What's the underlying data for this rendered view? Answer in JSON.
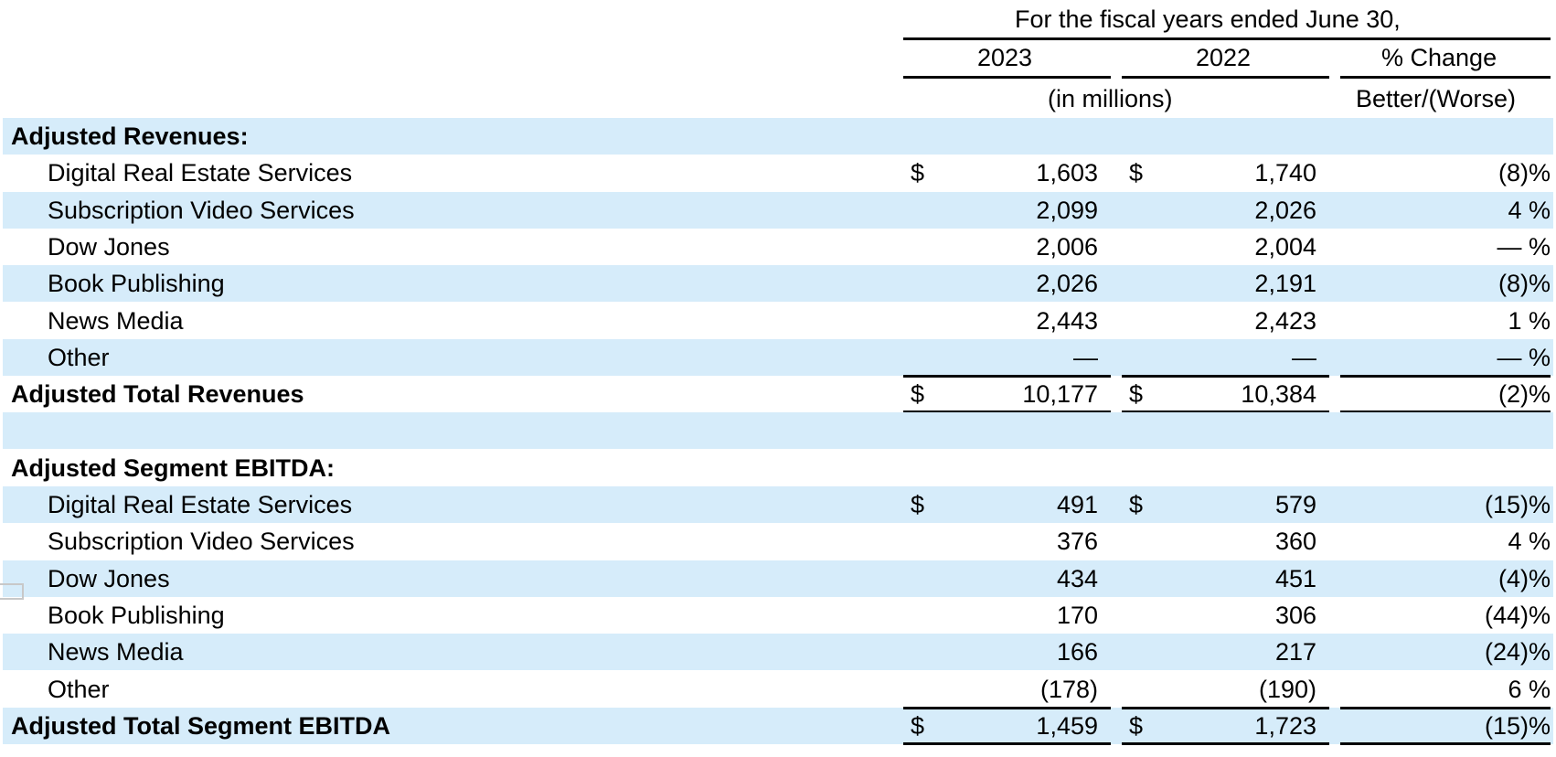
{
  "header": {
    "title": "For the fiscal years ended June 30,",
    "col_2023": "2023",
    "col_2022": "2022",
    "col_change": "% Change",
    "units": "(in millions)",
    "better_worse": "Better/(Worse)"
  },
  "rows": [
    {
      "label": "Adjusted Revenues:",
      "style": "section"
    },
    {
      "label": "Digital Real Estate Services",
      "style": "item",
      "d1": "$",
      "v2023": "1,603",
      "d2": "$",
      "v2022": "1,740",
      "change": "(8)%"
    },
    {
      "label": "Subscription Video Services",
      "style": "item",
      "v2023": "2,099",
      "v2022": "2,026",
      "change": "4 %"
    },
    {
      "label": "Dow Jones",
      "style": "item",
      "v2023": "2,006",
      "v2022": "2,004",
      "change": "— %"
    },
    {
      "label": "Book Publishing",
      "style": "item",
      "v2023": "2,026",
      "v2022": "2,191",
      "change": "(8)%"
    },
    {
      "label": "News Media",
      "style": "item",
      "v2023": "2,443",
      "v2022": "2,423",
      "change": "1 %"
    },
    {
      "label": "Other",
      "style": "item",
      "v2023": "—",
      "v2022": "—",
      "change": "— %"
    },
    {
      "label": "Adjusted Total Revenues",
      "style": "total",
      "d1": "$",
      "v2023": "10,177",
      "d2": "$",
      "v2022": "10,384",
      "change": "(2)%"
    },
    {
      "label": "",
      "style": "blank"
    },
    {
      "label": "Adjusted Segment EBITDA:",
      "style": "section"
    },
    {
      "label": "Digital Real Estate Services",
      "style": "item",
      "d1": "$",
      "v2023": "491",
      "d2": "$",
      "v2022": "579",
      "change": "(15)%"
    },
    {
      "label": "Subscription Video Services",
      "style": "item",
      "v2023": "376",
      "v2022": "360",
      "change": "4 %"
    },
    {
      "label": "Dow Jones",
      "style": "item",
      "v2023": "434",
      "v2022": "451",
      "change": "(4)%"
    },
    {
      "label": "Book Publishing",
      "style": "item",
      "v2023": "170",
      "v2022": "306",
      "change": "(44)%"
    },
    {
      "label": "News Media",
      "style": "item",
      "v2023": "166",
      "v2022": "217",
      "change": "(24)%"
    },
    {
      "label": "Other",
      "style": "item",
      "v2023": "(178)",
      "v2022": "(190)",
      "change": "6 %"
    },
    {
      "label": "Adjusted Total Segment EBITDA",
      "style": "total",
      "d1": "$",
      "v2023": "1,459",
      "d2": "$",
      "v2022": "1,723",
      "change": "(15)%"
    }
  ],
  "colors": {
    "shade": "#d6ecfa",
    "text": "#000000"
  }
}
